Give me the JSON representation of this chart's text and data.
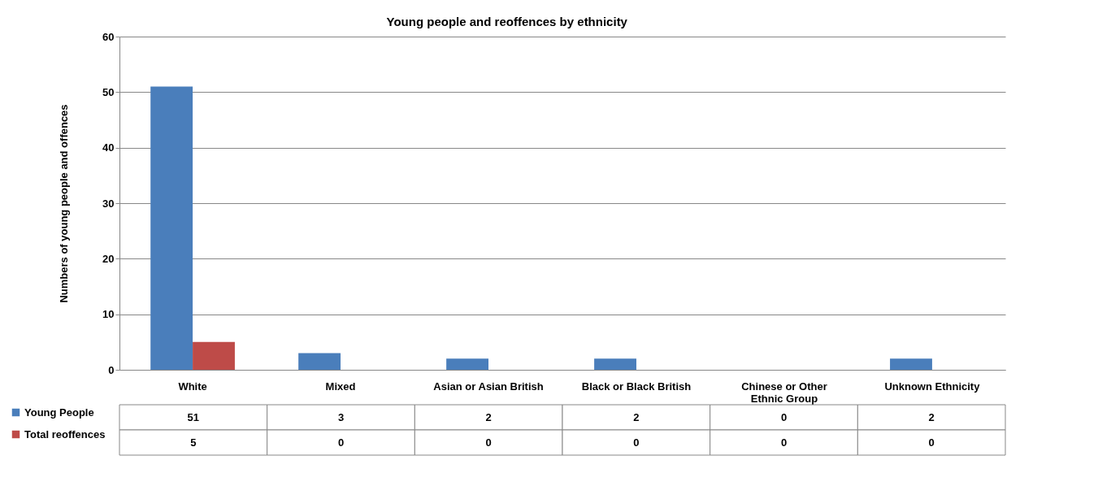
{
  "chart_data": {
    "type": "bar",
    "title": "Young people and reoffences by ethnicity",
    "ylabel": "Numbers of young people and offences",
    "categories": [
      "White",
      "Mixed",
      "Asian or Asian British",
      "Black or Black British",
      "Chinese or Other Ethnic Group",
      "Unknown Ethnicity"
    ],
    "series": [
      {
        "name": "Young People",
        "color": "#4a7ebb",
        "values": [
          51,
          3,
          2,
          2,
          0,
          2
        ]
      },
      {
        "name": "Total reoffences",
        "color": "#be4b48",
        "values": [
          5,
          0,
          0,
          0,
          0,
          0
        ]
      }
    ],
    "ylim": [
      0,
      60
    ],
    "yticks": [
      0,
      10,
      20,
      30,
      40,
      50,
      60
    ],
    "grid": "y",
    "legend": "bottom left",
    "data_labels": true
  }
}
